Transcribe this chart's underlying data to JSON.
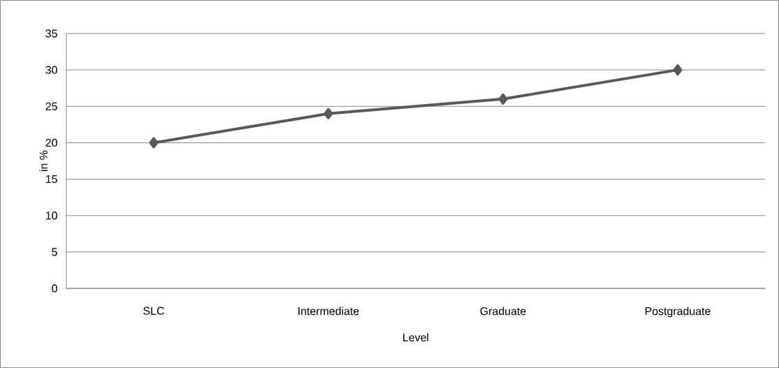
{
  "chart_data": {
    "type": "line",
    "xlabel": "Level",
    "ylabel": "in %",
    "categories": [
      "SLC",
      "Intermediate",
      "Graduate",
      "Postgraduate"
    ],
    "series": [
      {
        "color": "#595959",
        "values": [
          20,
          24,
          26,
          30
        ]
      }
    ],
    "ylim": [
      0,
      35
    ],
    "yticks": [
      0,
      5,
      10,
      15,
      20,
      25,
      30,
      35
    ],
    "grid": "y",
    "marker": "diamond",
    "line_style": "solid"
  }
}
